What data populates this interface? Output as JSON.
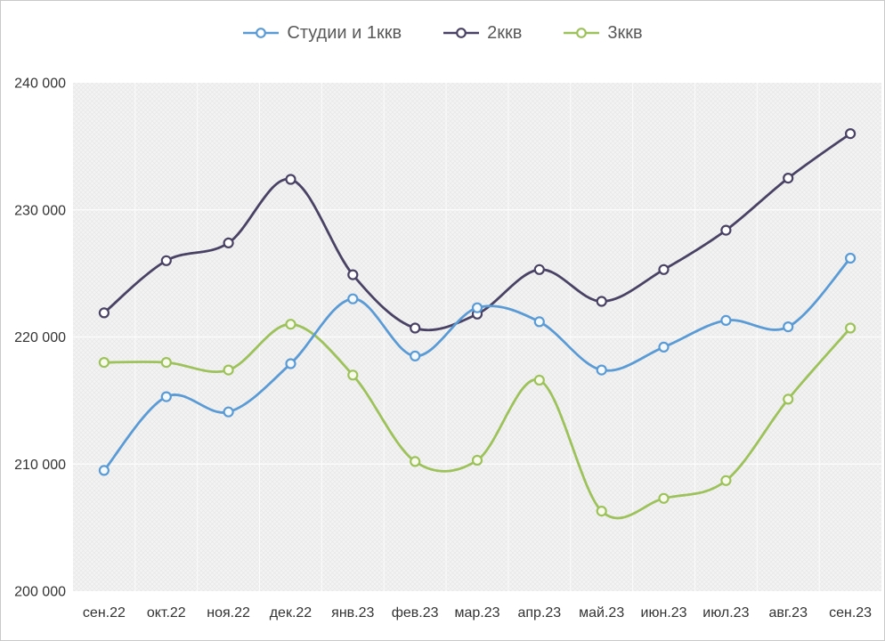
{
  "chart_data": {
    "type": "line",
    "title": "",
    "xlabel": "",
    "ylabel": "",
    "categories": [
      "сен.22",
      "окт.22",
      "ноя.22",
      "дек.22",
      "янв.23",
      "фев.23",
      "мар.23",
      "апр.23",
      "май.23",
      "июн.23",
      "июл.23",
      "авг.23",
      "сен.23"
    ],
    "series": [
      {
        "name": "Студии и 1ккв",
        "color": "#5B9BD5",
        "marker_fill": "#F4F9FD",
        "values": [
          209500,
          215300,
          214100,
          217900,
          223000,
          218500,
          222300,
          221200,
          217400,
          219200,
          221300,
          220800,
          226200
        ]
      },
      {
        "name": "2ккв",
        "color": "#4A4264",
        "marker_fill": "#FFFFFF",
        "values": [
          221900,
          226000,
          227400,
          232400,
          224900,
          220700,
          221800,
          225300,
          222800,
          225300,
          228400,
          232500,
          236000
        ]
      },
      {
        "name": "3ккв",
        "color": "#9DC25B",
        "marker_fill": "#F8FBEC",
        "values": [
          218000,
          218000,
          217400,
          221000,
          217000,
          210200,
          210300,
          216600,
          206300,
          207300,
          208700,
          215100,
          220700
        ]
      }
    ],
    "ylim": [
      200000,
      240000
    ],
    "ytick_step": 10000,
    "ytick_labels": [
      "200 000",
      "210 000",
      "220 000",
      "230 000",
      "240 000"
    ],
    "grid": true,
    "legend_position": "top",
    "line_smooth": true,
    "marker": "circle",
    "colors": {
      "plot_bg": "#F3F3F3",
      "hatch_line": "#E5E5E5",
      "gridline": "#FFFFFF",
      "axis_text": "#333333",
      "legend_text": "#595959",
      "frame_border": "#C9C9C9"
    }
  }
}
